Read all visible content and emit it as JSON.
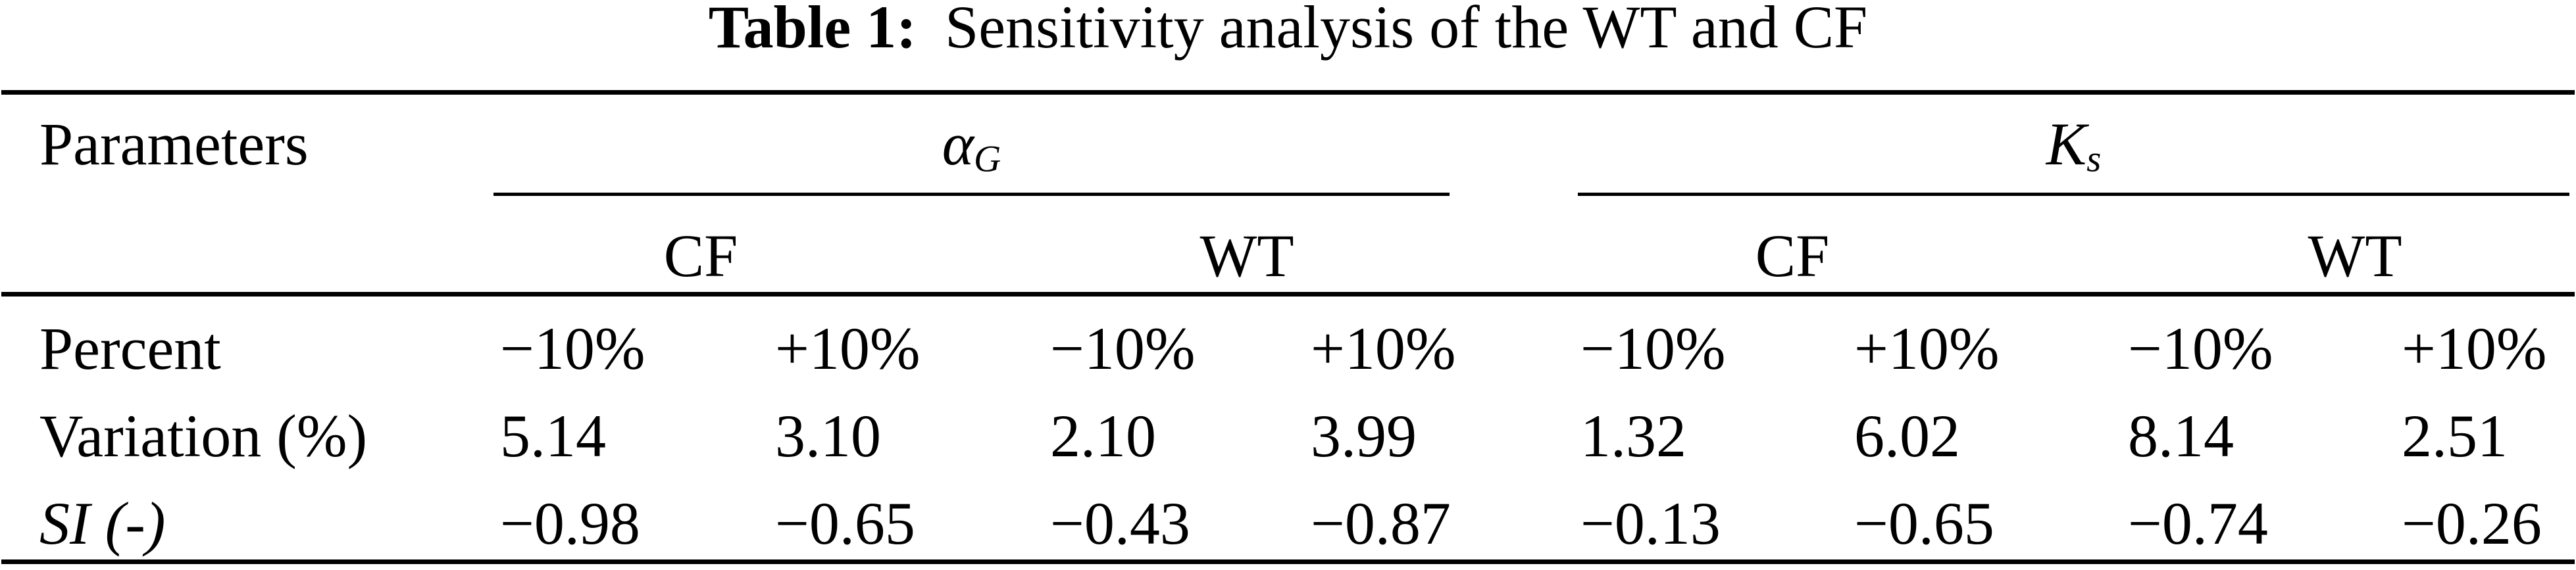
{
  "caption": {
    "label": "Table 1:",
    "text": "Sensitivity analysis of the WT and CF"
  },
  "table": {
    "stub_header": "Parameters",
    "groups": [
      {
        "symbol": "α",
        "subscript": "G"
      },
      {
        "symbol": "K",
        "subscript": "s"
      }
    ],
    "subheaders": [
      "CF",
      "WT",
      "CF",
      "WT"
    ],
    "rows": [
      {
        "label": "Percent",
        "values": [
          "−10%",
          "+10%",
          "−10%",
          "+10%",
          "−10%",
          "+10%",
          "−10%",
          "+10%"
        ]
      },
      {
        "label": "Variation (%)",
        "values": [
          "5.14",
          "3.10",
          "2.10",
          "3.99",
          "1.32",
          "6.02",
          "8.14",
          "2.51"
        ]
      },
      {
        "label": "SI (-)",
        "values": [
          "−0.98",
          "−0.65",
          "−0.43",
          "−0.87",
          "−0.13",
          "−0.65",
          "−0.74",
          "−0.26"
        ]
      }
    ]
  },
  "colors": {
    "text": "#000000",
    "background": "#ffffff",
    "rule": "#000000"
  }
}
